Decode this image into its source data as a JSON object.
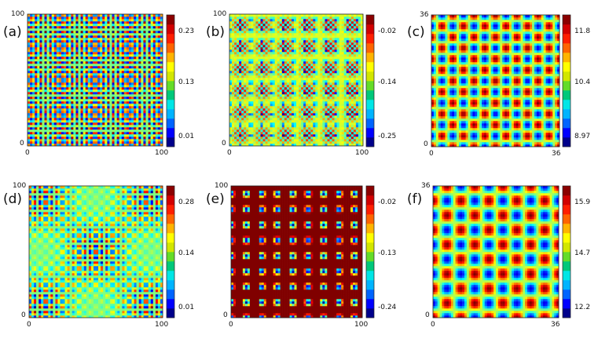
{
  "chart_data": [
    {
      "type": "heatmap",
      "label": "(a)",
      "xlim": [
        0,
        100
      ],
      "ylim": [
        0,
        100
      ],
      "x_ticks": [
        "0",
        "100"
      ],
      "y_ticks": [
        "0",
        "100"
      ],
      "colorbar_ticks": [
        "0.23",
        "0.13",
        "0.01"
      ],
      "colorbar_range": [
        0.01,
        0.25
      ],
      "pattern": "square lattice of alternating maxima and minima, period ~6.7"
    },
    {
      "type": "heatmap",
      "label": "(b)",
      "xlim": [
        0,
        100
      ],
      "ylim": [
        0,
        100
      ],
      "x_ticks": [
        "0",
        "100"
      ],
      "y_ticks": [
        "0",
        "100"
      ],
      "colorbar_ticks": [
        "-0.02",
        "-0.14",
        "-0.25"
      ],
      "colorbar_range": [
        -0.27,
        0.0
      ],
      "pattern": "fine square lattice of minima with red background and defect lines"
    },
    {
      "type": "heatmap",
      "label": "(c)",
      "xlim": [
        0,
        36
      ],
      "ylim": [
        0,
        36
      ],
      "x_ticks": [
        "0",
        "36"
      ],
      "y_ticks": [
        "0",
        "36"
      ],
      "colorbar_ticks": [
        "11.8",
        "10.4",
        "8.97"
      ],
      "colorbar_range": [
        8.97,
        12.4
      ],
      "pattern": "square lattice of spots, period ~6"
    },
    {
      "type": "heatmap",
      "label": "(d)",
      "xlim": [
        0,
        100
      ],
      "ylim": [
        0,
        100
      ],
      "x_ticks": [
        "0",
        "100"
      ],
      "y_ticks": [
        "0",
        "100"
      ],
      "colorbar_ticks": [
        "0.28",
        "0.14",
        "0.01"
      ],
      "colorbar_range": [
        0.01,
        0.31
      ],
      "pattern": "modulated lattice with beating (moire) envelope"
    },
    {
      "type": "heatmap",
      "label": "(e)",
      "xlim": [
        0,
        100
      ],
      "ylim": [
        0,
        100
      ],
      "x_ticks": [
        "0",
        "100"
      ],
      "y_ticks": [
        "0",
        "100"
      ],
      "colorbar_ticks": [
        "-0.02",
        "-0.13",
        "-0.24"
      ],
      "colorbar_range": [
        -0.26,
        0.0
      ],
      "pattern": "square lattice of minima on red background"
    },
    {
      "type": "heatmap",
      "label": "(f)",
      "xlim": [
        0,
        36
      ],
      "ylim": [
        0,
        36
      ],
      "x_ticks": [
        "0",
        "36"
      ],
      "y_ticks": [
        "0",
        "36"
      ],
      "colorbar_ticks": [
        "15.9",
        "14.7",
        "12.2"
      ],
      "colorbar_range": [
        12.2,
        16.3
      ],
      "pattern": "square lattice of elongated spots, period ~8"
    }
  ]
}
